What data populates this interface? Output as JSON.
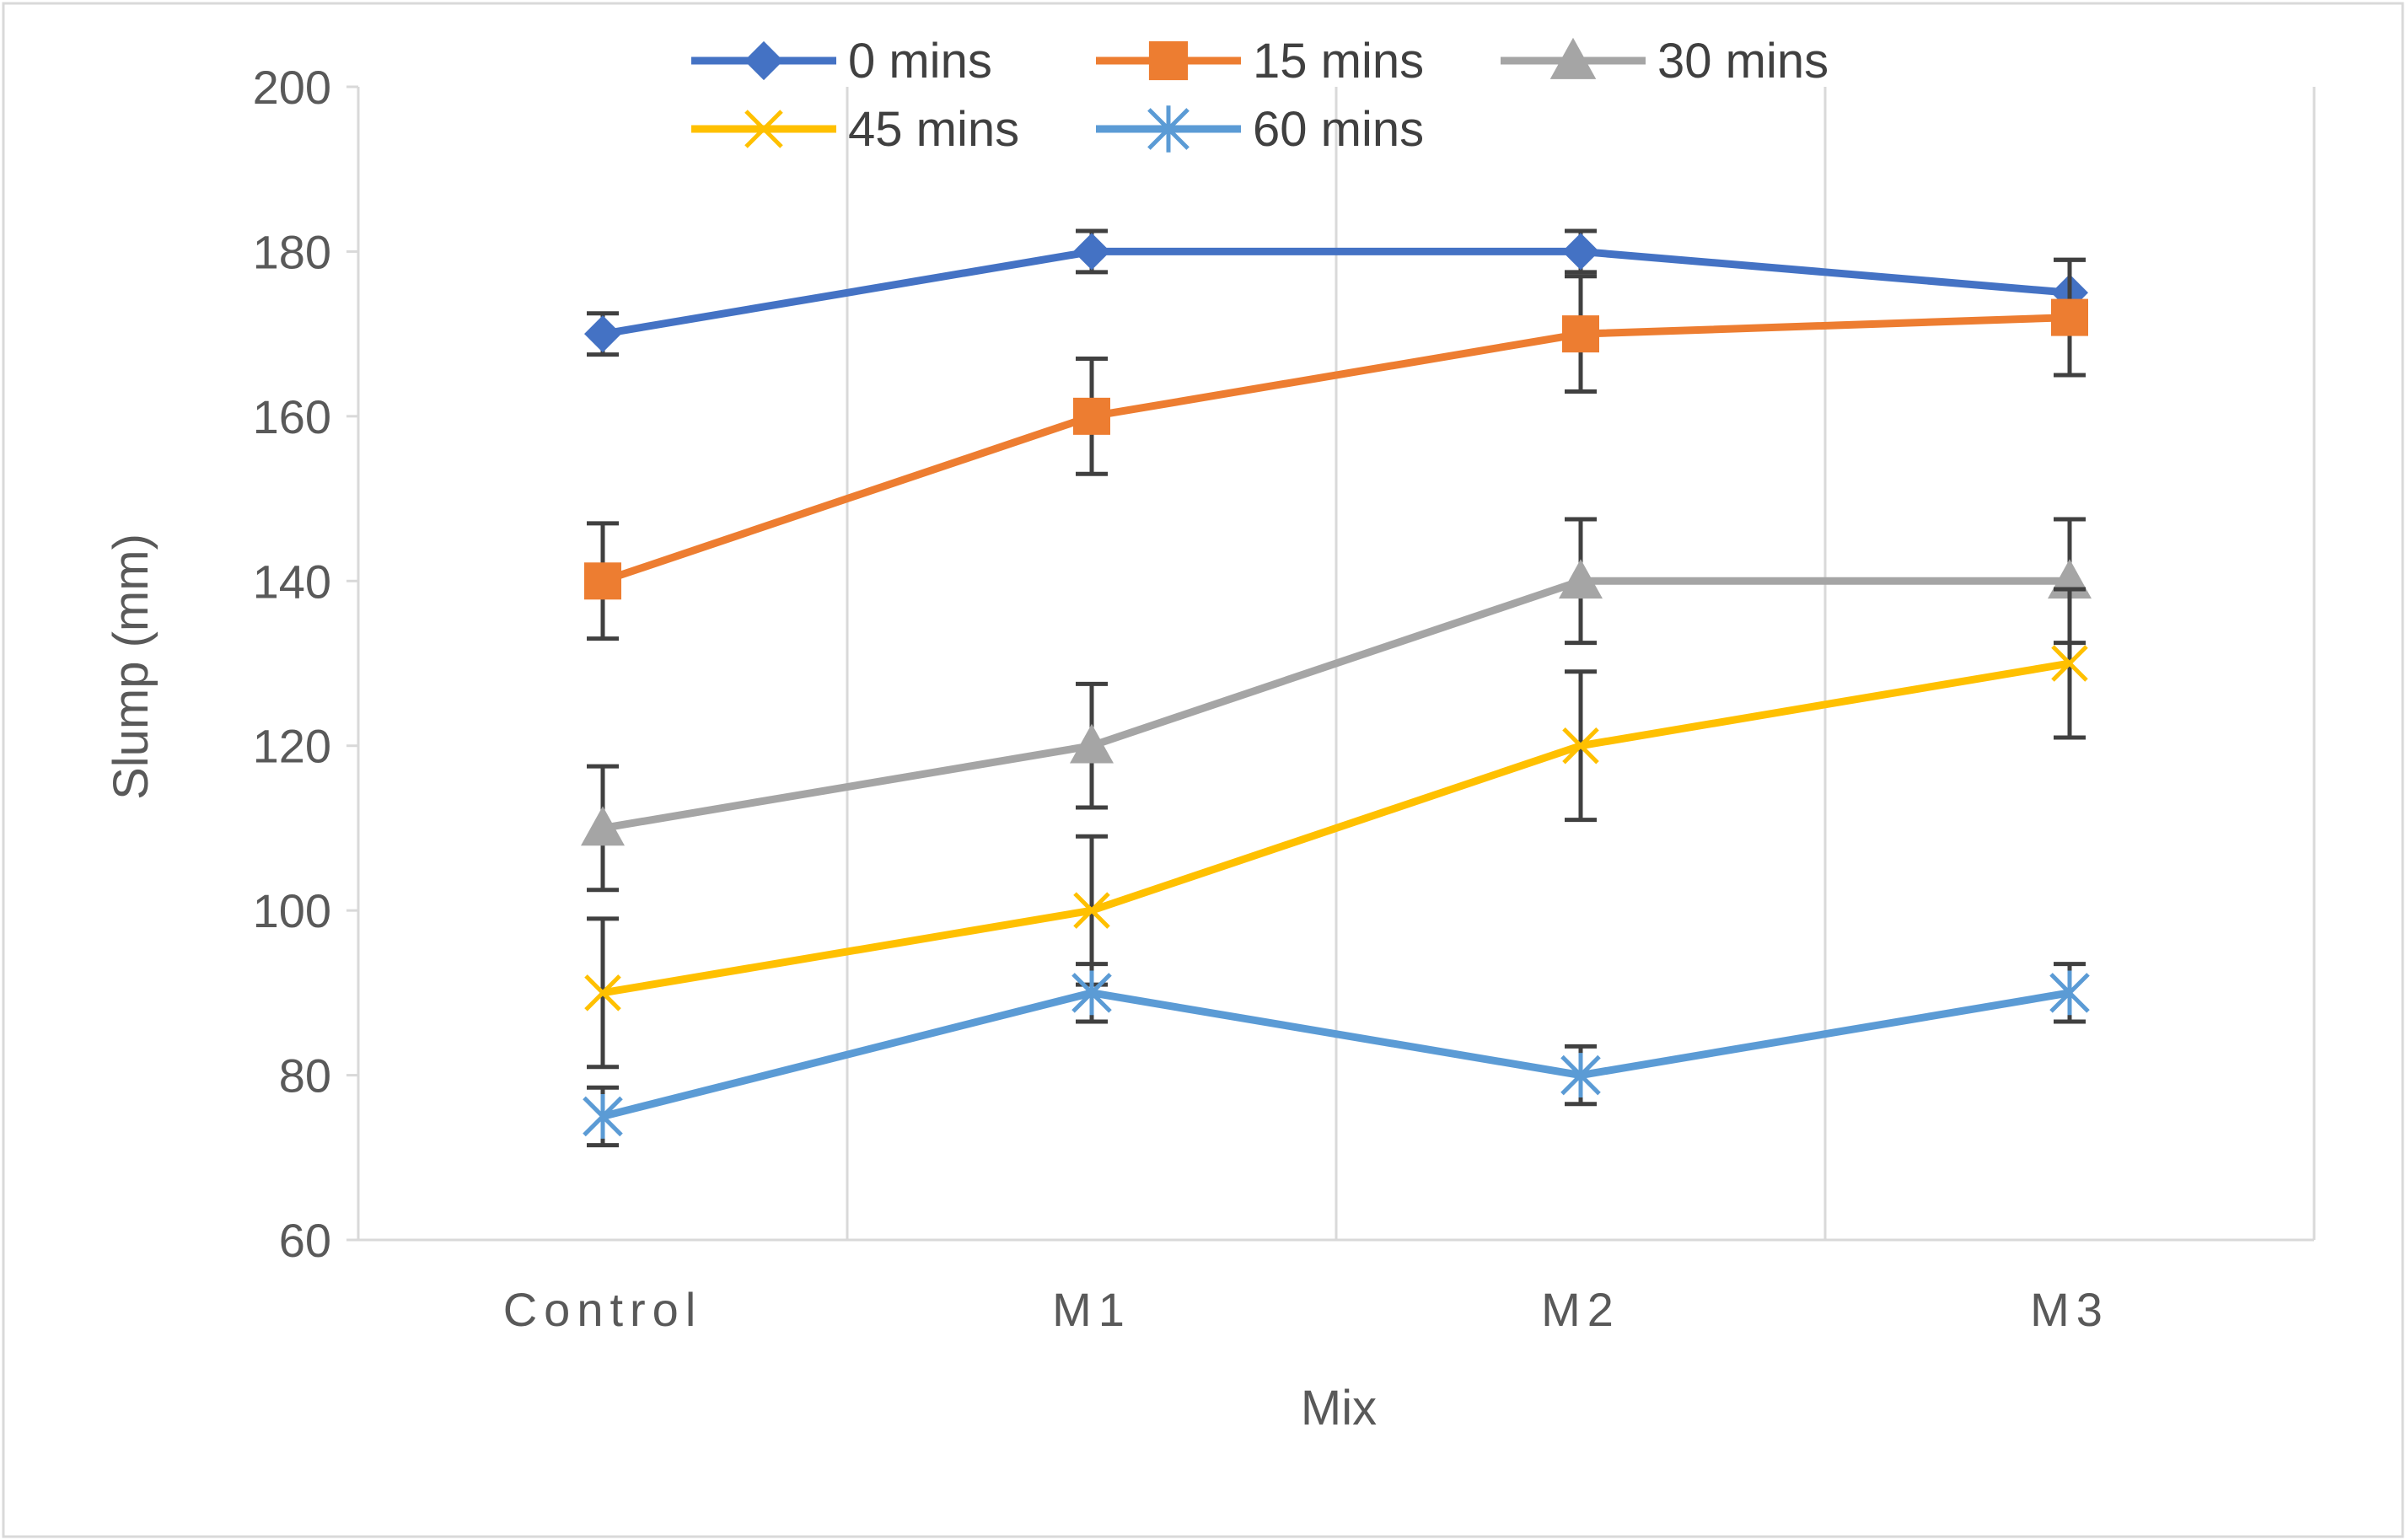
{
  "chart_data": {
    "type": "line",
    "title": "",
    "xlabel": "Mix",
    "ylabel": "Slump (mm)",
    "categories": [
      "Control",
      "M1",
      "M2",
      "M3"
    ],
    "ylim": [
      60,
      200
    ],
    "yticks": [
      60,
      80,
      100,
      120,
      140,
      160,
      180,
      200
    ],
    "grid": "vertical",
    "legend_position": "top",
    "series": [
      {
        "name": "0 mins",
        "color": "#4472C4",
        "marker": "diamond",
        "values": [
          170,
          180,
          180,
          175
        ],
        "errors": [
          2.5,
          2.5,
          2.5,
          4
        ]
      },
      {
        "name": "15 mins",
        "color": "#ED7D31",
        "marker": "square",
        "values": [
          140,
          160,
          170,
          172
        ],
        "errors": [
          7,
          7,
          7,
          7
        ]
      },
      {
        "name": "30 mins",
        "color": "#A5A5A5",
        "marker": "triangle",
        "values": [
          110,
          120,
          140,
          140
        ],
        "errors": [
          7.5,
          7.5,
          7.5,
          7.5
        ]
      },
      {
        "name": "45 mins",
        "color": "#FFC000",
        "marker": "x",
        "values": [
          90,
          100,
          120,
          130
        ],
        "errors": [
          9,
          9,
          9,
          9
        ]
      },
      {
        "name": "60 mins",
        "color": "#5B9BD5",
        "marker": "star",
        "values": [
          75,
          90,
          80,
          90
        ],
        "errors": [
          3.5,
          3.5,
          3.5,
          3.5
        ]
      }
    ]
  }
}
